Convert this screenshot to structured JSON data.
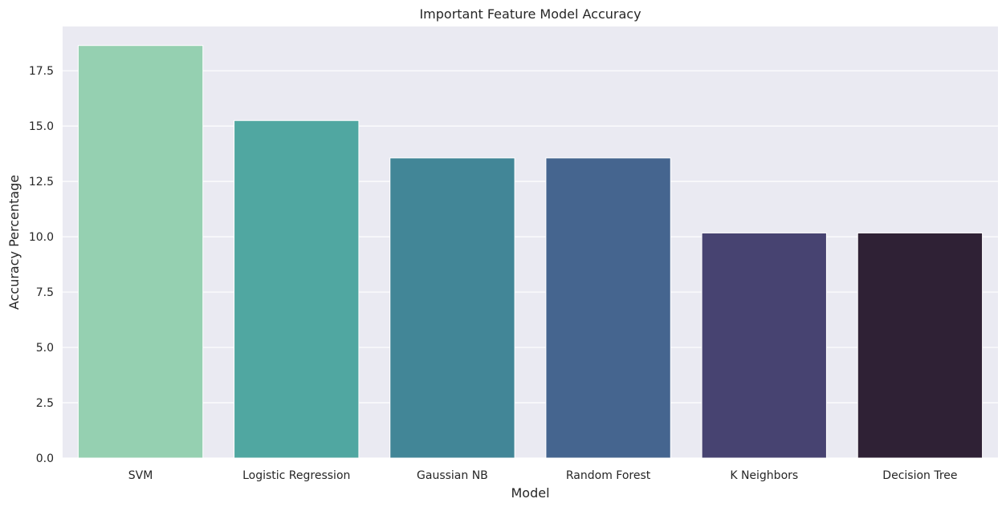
{
  "chart_data": {
    "type": "bar",
    "title": "Important Feature Model Accuracy",
    "xlabel": "Model",
    "ylabel": "Accuracy Percentage",
    "categories": [
      "SVM",
      "Logistic Regression",
      "Gaussian NB",
      "Random Forest",
      "K Neighbors",
      "Decision Tree"
    ],
    "values": [
      18.64,
      15.25,
      13.56,
      13.56,
      10.17,
      10.17
    ],
    "colors": [
      "#95d0b1",
      "#50a7a1",
      "#428697",
      "#45658f",
      "#474371",
      "#2f2135"
    ],
    "ylim": [
      0,
      19.5
    ],
    "yticks": [
      0.0,
      2.5,
      5.0,
      7.5,
      10.0,
      12.5,
      15.0,
      17.5
    ],
    "ytick_labels": [
      "0.0",
      "2.5",
      "5.0",
      "7.5",
      "10.0",
      "12.5",
      "15.0",
      "17.5"
    ],
    "grid": true,
    "background": "#eaeaf2",
    "grid_color": "#ffffff"
  }
}
